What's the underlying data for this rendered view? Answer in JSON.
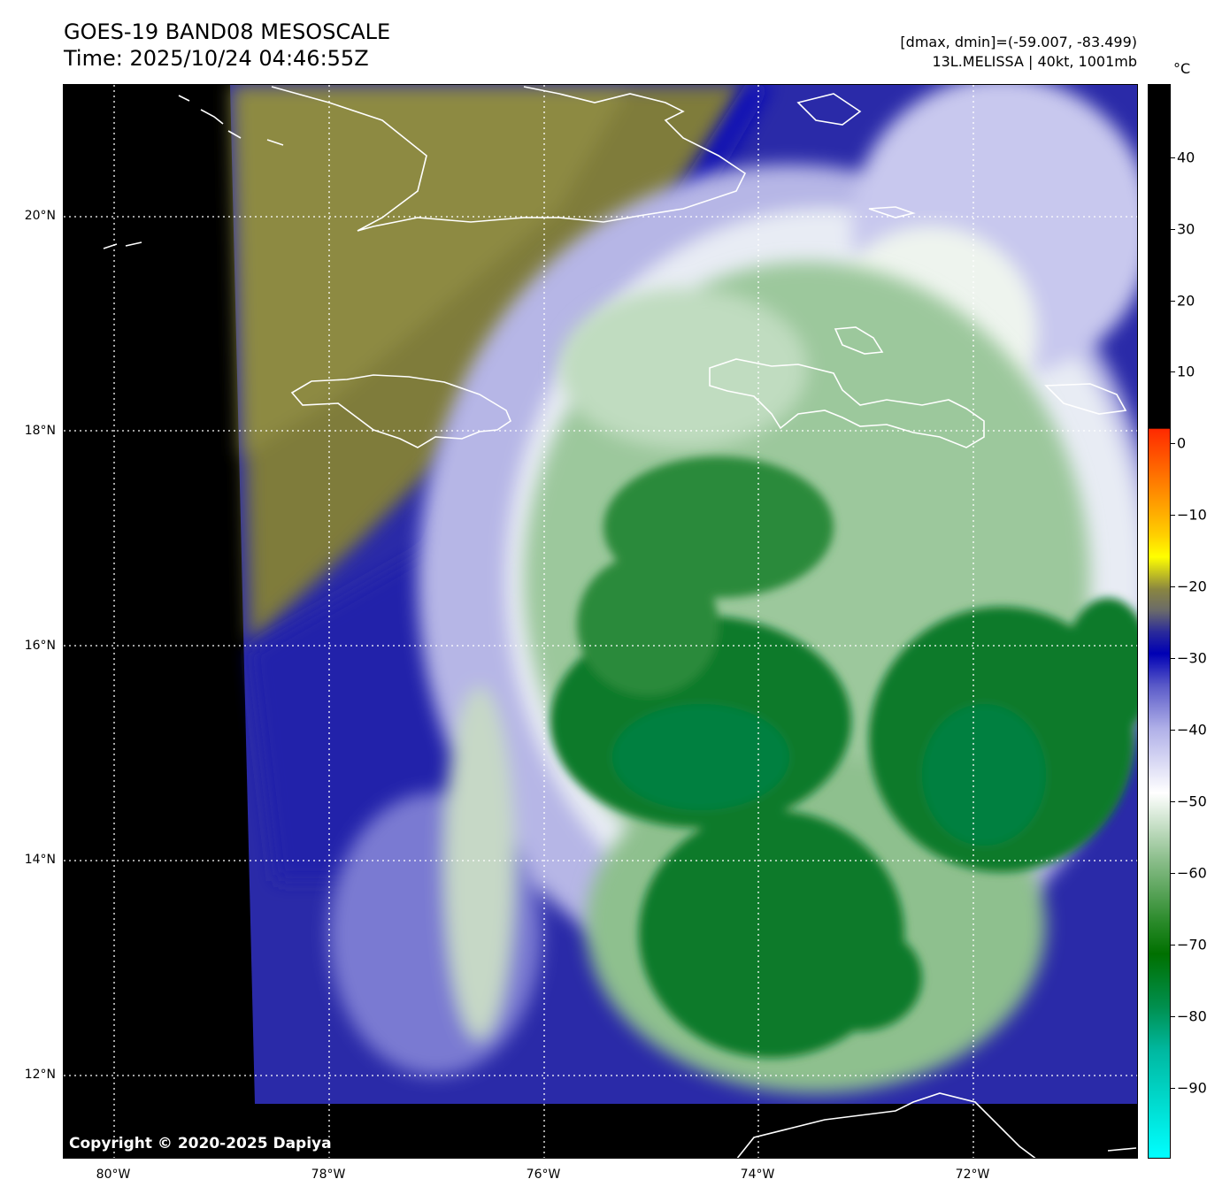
{
  "title": {
    "line1": "GOES-19 BAND08 MESOSCALE",
    "line2": "Time: 2025/10/24 04:46:55Z"
  },
  "info": {
    "line1": "[dmax, dmin]=(-59.007, -83.499)",
    "line2": "13L.MELISSA | 40kt, 1001mb"
  },
  "copyright": "Copyright © 2020-2025 Dapiya",
  "colorbar": {
    "unit": "°C",
    "tick_labels": [
      "40",
      "30",
      "20",
      "10",
      "0",
      "−10",
      "−20",
      "−30",
      "−40",
      "−50",
      "−60",
      "−70",
      "−80",
      "−90"
    ],
    "colors": {
      "warm_black": "#000000",
      "red": "#ff2a00",
      "yellow": "#ffff00",
      "olive": "#8a8640",
      "blue": "#0000b4",
      "white": "#ffffff",
      "green": "#007000",
      "cyan": "#00ffff"
    }
  },
  "map": {
    "lat_labels": [
      "20°N",
      "18°N",
      "16°N",
      "14°N",
      "12°N"
    ],
    "lon_labels": [
      "80°W",
      "78°W",
      "76°W",
      "74°W",
      "72°W"
    ],
    "coastline_color": "#ffffff"
  }
}
